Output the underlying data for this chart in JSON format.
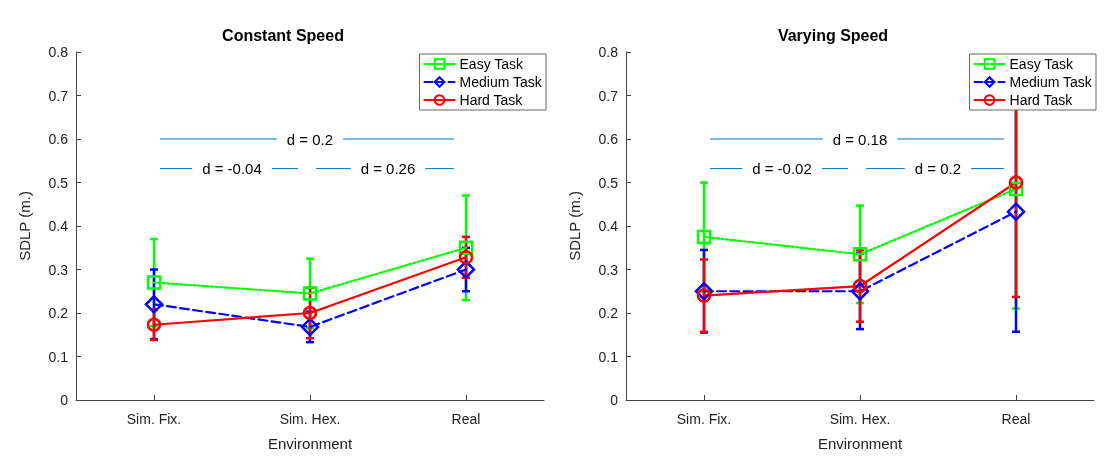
{
  "chart_data": [
    {
      "type": "line",
      "title": "Constant Speed",
      "xlabel": "Environment",
      "ylabel": "SDLP (m.)",
      "categories": [
        "Sim. Fix.",
        "Sim. Hex.",
        "Real"
      ],
      "series": [
        {
          "name": "Easy Task",
          "color": "#00ff00",
          "marker": "square",
          "line_style": "dotted",
          "values": [
            0.27,
            0.245,
            0.35
          ],
          "errors": [
            0.1,
            0.08,
            0.12
          ]
        },
        {
          "name": "Medium Task",
          "color": "#0000ff",
          "marker": "diamond",
          "line_style": "dashed",
          "values": [
            0.22,
            0.168,
            0.3
          ],
          "errors": [
            0.08,
            0.035,
            0.05
          ]
        },
        {
          "name": "Hard Task",
          "color": "#ff0000",
          "marker": "circle",
          "line_style": "solid",
          "values": [
            0.173,
            0.2,
            0.328
          ],
          "errors": [
            0.035,
            0.058,
            0.047
          ]
        }
      ],
      "ylim": [
        0,
        0.8
      ],
      "yticks": [
        0,
        0.1,
        0.2,
        0.3,
        0.4,
        0.5,
        0.6,
        0.7,
        0.8
      ],
      "grid": false,
      "legend": "top right",
      "annotations": [
        "d = 0.2",
        "d = -0.04",
        "d = 0.26"
      ]
    },
    {
      "type": "line",
      "title": "Varying Speed",
      "xlabel": "Environment",
      "ylabel": "SDLP (m.)",
      "categories": [
        "Sim. Fix.",
        "Sim. Hex.",
        "Real"
      ],
      "series": [
        {
          "name": "Easy Task",
          "color": "#00ff00",
          "marker": "square",
          "line_style": "dotted",
          "values": [
            0.375,
            0.335,
            0.485
          ],
          "errors": [
            0.125,
            0.112,
            0.275
          ]
        },
        {
          "name": "Medium Task",
          "color": "#0000ff",
          "marker": "diamond",
          "line_style": "dashed",
          "values": [
            0.25,
            0.25,
            0.433
          ],
          "errors": [
            0.095,
            0.087,
            0.276
          ]
        },
        {
          "name": "Hard Task",
          "color": "#ff0000",
          "marker": "circle",
          "line_style": "solid",
          "values": [
            0.24,
            0.262,
            0.5
          ],
          "errors": [
            0.083,
            0.082,
            0.263
          ]
        }
      ],
      "ylim": [
        0,
        0.8
      ],
      "yticks": [
        0,
        0.1,
        0.2,
        0.3,
        0.4,
        0.5,
        0.6,
        0.7,
        0.8
      ],
      "grid": false,
      "legend": "top right",
      "annotations": [
        "d = 0.18",
        "d = -0.02",
        "d = 0.2"
      ]
    }
  ]
}
